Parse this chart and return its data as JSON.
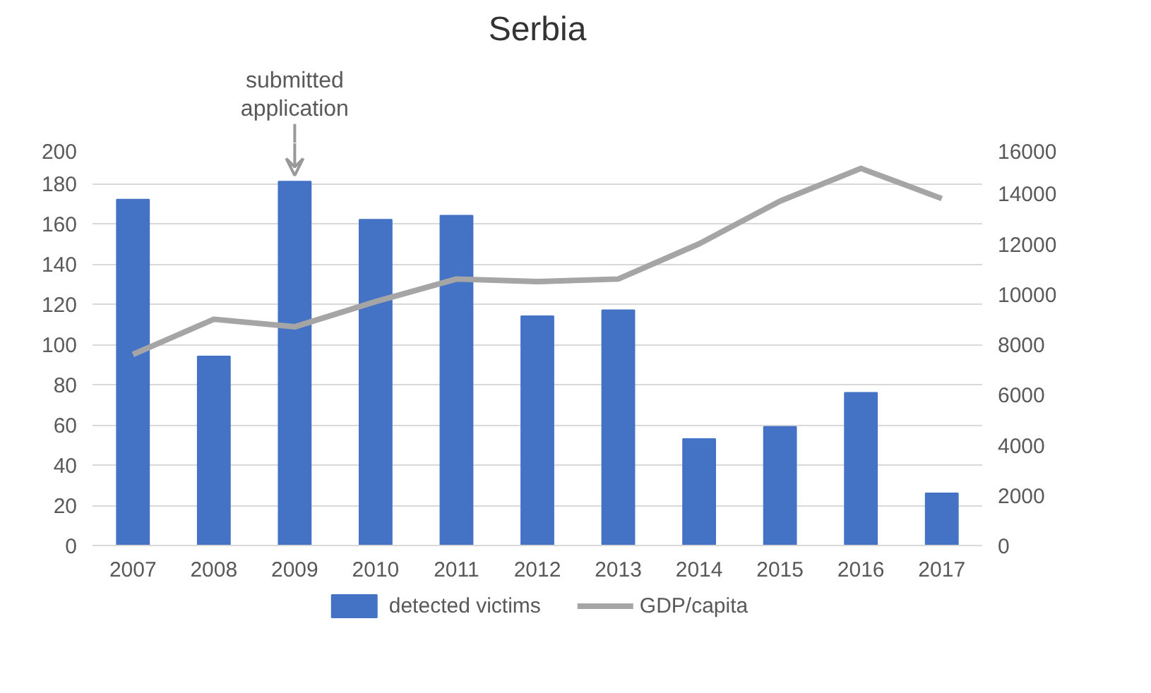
{
  "chart_data": {
    "type": "bar",
    "title": "Serbia",
    "categories": [
      "2007",
      "2008",
      "2009",
      "2010",
      "2011",
      "2012",
      "2013",
      "2014",
      "2015",
      "2016",
      "2017"
    ],
    "series": [
      {
        "name": "detected victims",
        "color": "#4472c4",
        "values": [
          172,
          94,
          181,
          162,
          164,
          114,
          117,
          53,
          59,
          76,
          26
        ]
      },
      {
        "name": "GDP/capita",
        "type": "line",
        "axis": "y2",
        "color": "#a5a5a5",
        "values": [
          7600,
          9000,
          8700,
          9700,
          10600,
          10500,
          10600,
          12000,
          13700,
          15000,
          13800
        ]
      }
    ],
    "ylim": [
      0,
      200
    ],
    "yticks": [
      0,
      20,
      40,
      60,
      80,
      100,
      120,
      140,
      160,
      180,
      200
    ],
    "y2lim": [
      0,
      16000
    ],
    "y2ticks": [
      0,
      2000,
      4000,
      6000,
      8000,
      10000,
      12000,
      14000,
      16000
    ],
    "grid": "y",
    "legend": "bottom",
    "marker": "none",
    "line_style": "solid",
    "annotations": [
      {
        "text": "submitted\napplication",
        "x": "2009",
        "y": 181
      }
    ]
  }
}
